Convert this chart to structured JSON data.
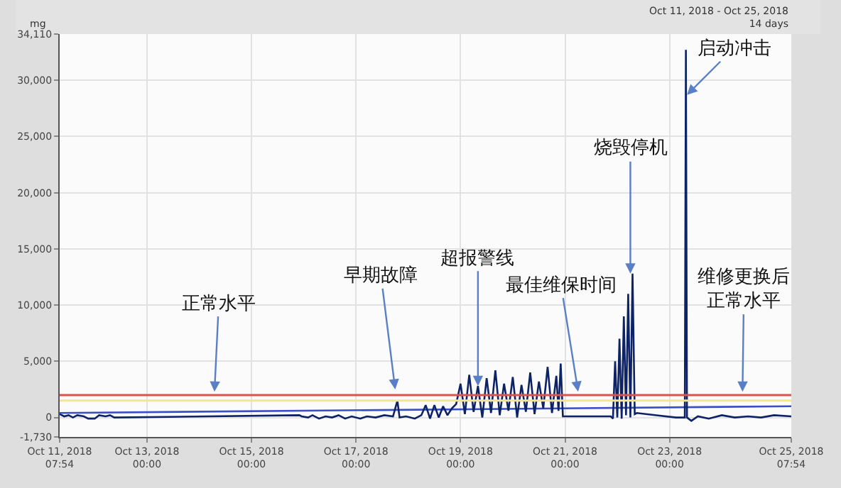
{
  "chart_data": {
    "type": "line",
    "ylabel": "mg",
    "xlim": [
      "2018-10-11T07:54",
      "2018-10-25T07:54"
    ],
    "xticks": [
      {
        "value": "2018-10-11T07:54",
        "label": "Oct 11, 2018\n07:54"
      },
      {
        "value": "2018-10-13T00:00",
        "label": "Oct 13, 2018\n00:00"
      },
      {
        "value": "2018-10-15T00:00",
        "label": "Oct 15, 2018\n00:00"
      },
      {
        "value": "2018-10-17T00:00",
        "label": "Oct 17, 2018\n00:00"
      },
      {
        "value": "2018-10-19T00:00",
        "label": "Oct 19, 2018\n00:00"
      },
      {
        "value": "2018-10-21T00:00",
        "label": "Oct 21, 2018\n00:00"
      },
      {
        "value": "2018-10-23T00:00",
        "label": "Oct 23, 2018\n00:00"
      },
      {
        "value": "2018-10-25T07:54",
        "label": "Oct 25, 2018\n07:54"
      }
    ],
    "ylim": [
      -1730,
      34110
    ],
    "yticks": [
      {
        "value": -1730,
        "label": "-1,730"
      },
      0,
      {
        "value": 5000,
        "label": "5,000"
      },
      {
        "value": 10000,
        "label": "10,000"
      },
      {
        "value": 15000,
        "label": "15,000"
      },
      {
        "value": 20000,
        "label": "20,000"
      },
      {
        "value": 25000,
        "label": "25,000"
      },
      {
        "value": 30000,
        "label": "30,000"
      },
      {
        "value": 34110,
        "label": "34,110"
      }
    ],
    "grid": true,
    "marker": "none",
    "line_style": "solid",
    "ref_lines": [
      {
        "axis": "y",
        "value": 2000,
        "color": "#d9534f"
      },
      {
        "axis": "y",
        "value": 1500,
        "color": "#f2e88a"
      }
    ],
    "series": [
      {
        "color": "#3a4fc4",
        "x": [
          "2018-10-11T07:54",
          "2018-10-25T07:54"
        ],
        "values": [
          400,
          1000
        ]
      },
      {
        "color": "#0d2366",
        "x": [
          "2018-10-11T07:54",
          "2018-10-11T10:00",
          "2018-10-11T12:00",
          "2018-10-11T14:00",
          "2018-10-11T16:00",
          "2018-10-11T19:00",
          "2018-10-11T21:00",
          "2018-10-12T00:00",
          "2018-10-12T02:00",
          "2018-10-12T05:00",
          "2018-10-12T07:00",
          "2018-10-12T09:00",
          "2018-10-15T22:00",
          "2018-10-15T23:00",
          "2018-10-16T02:00",
          "2018-10-16T04:00",
          "2018-10-16T07:00",
          "2018-10-16T10:00",
          "2018-10-16T13:00",
          "2018-10-16T16:00",
          "2018-10-16T19:00",
          "2018-10-16T22:00",
          "2018-10-17T02:00",
          "2018-10-17T05:00",
          "2018-10-17T09:00",
          "2018-10-17T13:00",
          "2018-10-17T17:00",
          "2018-10-17T19:00",
          "2018-10-17T20:00",
          "2018-10-17T23:00",
          "2018-10-18T03:00",
          "2018-10-18T06:00",
          "2018-10-18T08:00",
          "2018-10-18T10:00",
          "2018-10-18T12:00",
          "2018-10-18T14:00",
          "2018-10-18T16:00",
          "2018-10-18T18:00",
          "2018-10-18T20:00",
          "2018-10-18T22:00",
          "2018-10-19T00:00",
          "2018-10-19T02:00",
          "2018-10-19T04:00",
          "2018-10-19T06:00",
          "2018-10-19T08:00",
          "2018-10-19T10:00",
          "2018-10-19T12:00",
          "2018-10-19T14:00",
          "2018-10-19T16:00",
          "2018-10-19T18:00",
          "2018-10-19T20:00",
          "2018-10-19T22:00",
          "2018-10-20T00:00",
          "2018-10-20T02:00",
          "2018-10-20T04:00",
          "2018-10-20T06:00",
          "2018-10-20T08:00",
          "2018-10-20T10:00",
          "2018-10-20T12:00",
          "2018-10-20T14:00",
          "2018-10-20T16:00",
          "2018-10-20T18:00",
          "2018-10-20T20:00",
          "2018-10-20T21:00",
          "2018-10-20T22:00",
          "2018-10-20T23:00",
          "2018-10-21T21:00",
          "2018-10-21T22:00",
          "2018-10-21T23:00",
          "2018-10-22T00:00",
          "2018-10-22T01:00",
          "2018-10-22T02:00",
          "2018-10-22T03:00",
          "2018-10-22T04:00",
          "2018-10-22T05:00",
          "2018-10-22T06:00",
          "2018-10-22T07:00",
          "2018-10-22T08:00",
          "2018-10-22T09:00",
          "2018-10-22T18:00",
          "2018-10-23T03:00",
          "2018-10-23T07:00",
          "2018-10-23T07:30",
          "2018-10-23T08:00",
          "2018-10-23T10:00",
          "2018-10-23T13:00",
          "2018-10-23T18:00",
          "2018-10-24T00:00",
          "2018-10-24T06:00",
          "2018-10-24T12:00",
          "2018-10-24T18:00",
          "2018-10-25T00:00",
          "2018-10-25T07:54"
        ],
        "values": [
          300,
          100,
          200,
          0,
          200,
          100,
          -100,
          -100,
          200,
          100,
          200,
          0,
          200,
          100,
          0,
          200,
          -100,
          100,
          0,
          200,
          -100,
          100,
          -100,
          100,
          0,
          200,
          100,
          1500,
          0,
          100,
          -100,
          200,
          1100,
          -100,
          1100,
          0,
          1000,
          200,
          800,
          1200,
          3000,
          300,
          3800,
          500,
          2800,
          0,
          3500,
          400,
          4200,
          200,
          3000,
          600,
          3600,
          0,
          2900,
          500,
          4000,
          300,
          3200,
          800,
          4500,
          400,
          3700,
          600,
          4800,
          100,
          100,
          -100,
          5000,
          0,
          7000,
          -100,
          9000,
          200,
          11000,
          0,
          12800,
          300,
          400,
          200,
          0,
          0,
          32700,
          0,
          -300,
          100,
          -100,
          200,
          0,
          100,
          0,
          200,
          100
        ]
      }
    ],
    "annotations": [
      {
        "text": "正常水平",
        "x": "2018-10-14T07:00",
        "y": 2300
      },
      {
        "text": "早期故障",
        "x": "2018-10-17T18:00",
        "y": 2500
      },
      {
        "text": "超报警线",
        "x": "2018-10-19T08:00",
        "y": 2800
      },
      {
        "text": "最佳维保时间",
        "x": "2018-10-21T06:00",
        "y": 2300
      },
      {
        "text": "烧毁停机",
        "x": "2018-10-22T06:00",
        "y": 12800
      },
      {
        "text": "启动冲击",
        "x": "2018-10-23T08:00",
        "y": 28700
      },
      {
        "text": "维修更换后正常水平",
        "x": "2018-10-24T09:30",
        "y": 2300
      },
      "Oct 11, 2018 - Oct 25, 2018\n14 days"
    ]
  }
}
